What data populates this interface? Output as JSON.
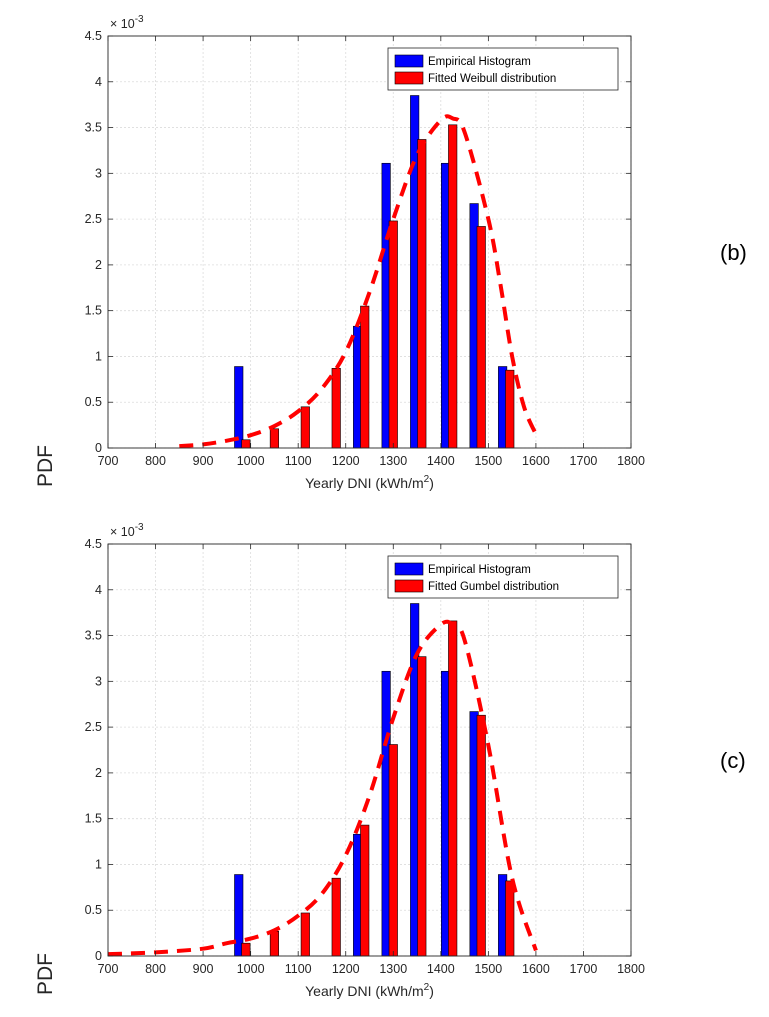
{
  "chart_data": [
    {
      "type": "bar",
      "panel_label": "(b)",
      "xlabel": "Yearly DNI (kWh/m²)",
      "xlabel_main": "Yearly DNI (kWh/m",
      "xlabel_sup": "2",
      "xlabel_tail": ")",
      "ylabel": "PDF",
      "y_exponent_base": "× 10",
      "y_exponent": "-3",
      "xlim": [
        700,
        1800
      ],
      "ylim": [
        0,
        4.5
      ],
      "x_ticks": [
        700,
        800,
        900,
        1000,
        1100,
        1200,
        1300,
        1400,
        1500,
        1600,
        1700,
        1800
      ],
      "y_ticks": [
        0,
        0.5,
        1,
        1.5,
        2,
        2.5,
        3,
        3.5,
        4,
        4.5
      ],
      "grid": true,
      "legend_position": "top-right",
      "series": [
        {
          "name": "Empirical Histogram",
          "color": "#0000ff",
          "x": [
            975,
            1040,
            1105,
            1170,
            1225,
            1285,
            1345,
            1410,
            1470,
            1530
          ],
          "values": [
            0.89,
            0,
            0,
            0,
            1.33,
            3.11,
            3.85,
            3.11,
            2.67,
            0.89
          ]
        },
        {
          "name": "Fitted Weibull distribution",
          "color": "#ff0000",
          "x": [
            990,
            1050,
            1115,
            1180,
            1240,
            1300,
            1360,
            1425,
            1485,
            1545
          ],
          "values": [
            0.09,
            0.21,
            0.45,
            0.87,
            1.55,
            2.48,
            3.37,
            3.53,
            2.42,
            0.85
          ]
        },
        {
          "name": "",
          "style": "dashed-curve",
          "color": "#ff0000",
          "x": [
            850,
            900,
            950,
            1000,
            1050,
            1100,
            1150,
            1200,
            1250,
            1300,
            1350,
            1400,
            1425,
            1450,
            1500,
            1525,
            1550,
            1575,
            1600
          ],
          "values": [
            0.02,
            0.04,
            0.08,
            0.14,
            0.24,
            0.4,
            0.65,
            1.05,
            1.7,
            2.5,
            3.2,
            3.58,
            3.6,
            3.45,
            2.5,
            1.8,
            1.0,
            0.45,
            0.15
          ]
        }
      ]
    },
    {
      "type": "bar",
      "panel_label": "(c)",
      "xlabel": "Yearly DNI (kWh/m²)",
      "xlabel_main": "Yearly DNI (kWh/m",
      "xlabel_sup": "2",
      "xlabel_tail": ")",
      "ylabel": "PDF",
      "y_exponent_base": "× 10",
      "y_exponent": "-3",
      "xlim": [
        700,
        1800
      ],
      "ylim": [
        0,
        4.5
      ],
      "x_ticks": [
        700,
        800,
        900,
        1000,
        1100,
        1200,
        1300,
        1400,
        1500,
        1600,
        1700,
        1800
      ],
      "y_ticks": [
        0,
        0.5,
        1,
        1.5,
        2,
        2.5,
        3,
        3.5,
        4,
        4.5
      ],
      "grid": true,
      "legend_position": "top-right",
      "series": [
        {
          "name": "Empirical Histogram",
          "color": "#0000ff",
          "x": [
            975,
            1040,
            1105,
            1170,
            1225,
            1285,
            1345,
            1410,
            1470,
            1530
          ],
          "values": [
            0.89,
            0,
            0,
            0,
            1.33,
            3.11,
            3.85,
            3.11,
            2.67,
            0.89
          ]
        },
        {
          "name": "Fitted Gumbel distribution",
          "color": "#ff0000",
          "x": [
            990,
            1050,
            1115,
            1180,
            1240,
            1300,
            1360,
            1425,
            1485,
            1545
          ],
          "values": [
            0.14,
            0.27,
            0.47,
            0.85,
            1.43,
            2.31,
            3.27,
            3.66,
            2.63,
            0.82
          ]
        },
        {
          "name": "",
          "style": "dashed-curve",
          "color": "#ff0000",
          "x": [
            700,
            800,
            900,
            950,
            1000,
            1050,
            1100,
            1150,
            1200,
            1250,
            1300,
            1350,
            1400,
            1425,
            1450,
            1500,
            1550,
            1600
          ],
          "values": [
            0.02,
            0.04,
            0.08,
            0.14,
            0.19,
            0.28,
            0.44,
            0.68,
            1.1,
            1.75,
            2.6,
            3.3,
            3.62,
            3.62,
            3.45,
            2.3,
            0.85,
            0.06
          ]
        }
      ]
    }
  ]
}
